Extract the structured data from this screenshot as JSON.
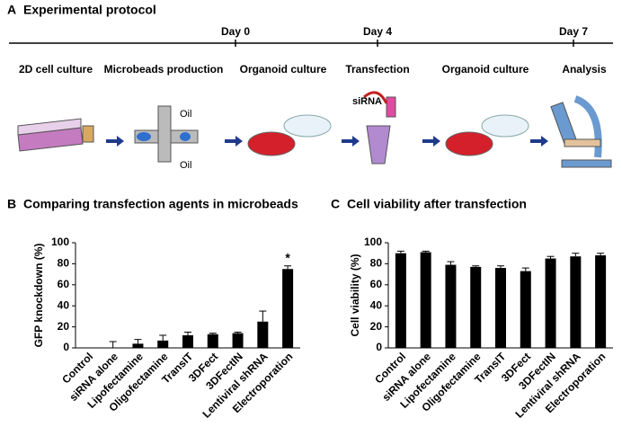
{
  "protocol": {
    "panel": "A",
    "title": "Experimental protocol",
    "days": [
      "Day 0",
      "Day 4",
      "Day 7"
    ],
    "steps": [
      "2D cell culture",
      "Microbeads production",
      "Organoid culture",
      "Transfection",
      "Organoid culture",
      "Analysis"
    ],
    "icon_labels": [
      "Oil",
      "Oil",
      "siRNA"
    ]
  },
  "chart_data": [
    {
      "type": "bar",
      "panel": "B",
      "title": "Comparing transfection agents in microbeads",
      "y_label": "GFP knockdown (%)",
      "categories": [
        "Control",
        "siRNA alone",
        "Lipofectamine",
        "Oligofectamine",
        "TransIT",
        "3DFect",
        "3DFectIN",
        "Lentiviral shRNA",
        "Electroporation"
      ],
      "values": [
        0,
        0,
        4,
        7,
        12,
        13,
        14,
        25,
        75
      ],
      "errors": [
        0,
        6,
        4,
        5,
        3,
        1,
        1,
        10,
        3
      ],
      "annotation": "*",
      "color": "#000000",
      "ylim": [
        0,
        100
      ],
      "yticks": [
        0,
        20,
        40,
        60,
        80,
        100
      ]
    },
    {
      "type": "bar",
      "panel": "C",
      "title": "Cell viability after transfection",
      "y_label": "Cell viability (%)",
      "categories": [
        "Control",
        "siRNA alone",
        "Lipofectamine",
        "Oligofectamine",
        "TransIT",
        "3DFect",
        "3DFectIN",
        "Lentiviral shRNA",
        "Electroporation"
      ],
      "values": [
        90,
        91,
        79,
        77,
        76,
        73,
        85,
        87,
        88
      ],
      "errors": [
        2,
        1,
        3,
        1,
        2,
        3,
        2,
        3,
        2
      ],
      "color": "#000000",
      "ylim": [
        0,
        100
      ],
      "yticks": [
        0,
        20,
        40,
        60,
        80,
        100
      ]
    }
  ]
}
